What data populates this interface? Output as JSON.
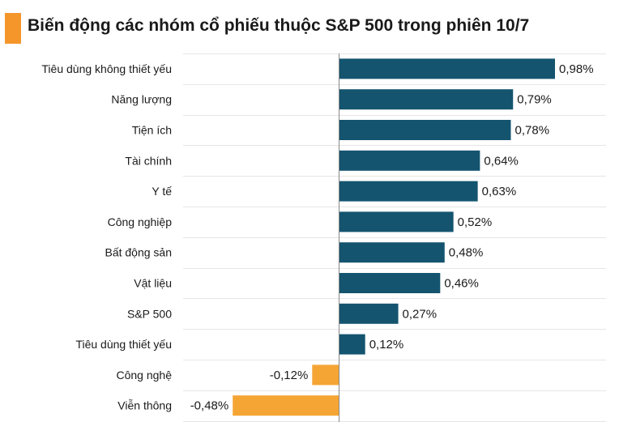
{
  "chart_data": {
    "type": "bar",
    "orientation": "horizontal",
    "title": "Biến động các nhóm cổ phiếu thuộc S&P 500 trong phiên 10/7",
    "categories": [
      "Tiêu dùng không thiết yếu",
      "Năng lượng",
      "Tiện ích",
      "Tài chính",
      "Y tế",
      "Công nghiệp",
      "Bất động sản",
      "Vật liệu",
      "S&P 500",
      "Tiêu dùng thiết yếu",
      "Công nghệ",
      "Viễn thông"
    ],
    "values": [
      0.98,
      0.79,
      0.78,
      0.64,
      0.63,
      0.52,
      0.48,
      0.46,
      0.27,
      0.12,
      -0.12,
      -0.48
    ],
    "value_labels": [
      "0,98%",
      "0,79%",
      "0,78%",
      "0,64%",
      "0,63%",
      "0,52%",
      "0,48%",
      "0,46%",
      "0,27%",
      "0,12%",
      "-0,12%",
      "-0,48%"
    ],
    "xlim": [
      -0.48,
      0.98
    ],
    "grid": true,
    "colors": {
      "positive": "#14546f",
      "negative": "#f5a534",
      "accent": "#f5962b"
    }
  }
}
